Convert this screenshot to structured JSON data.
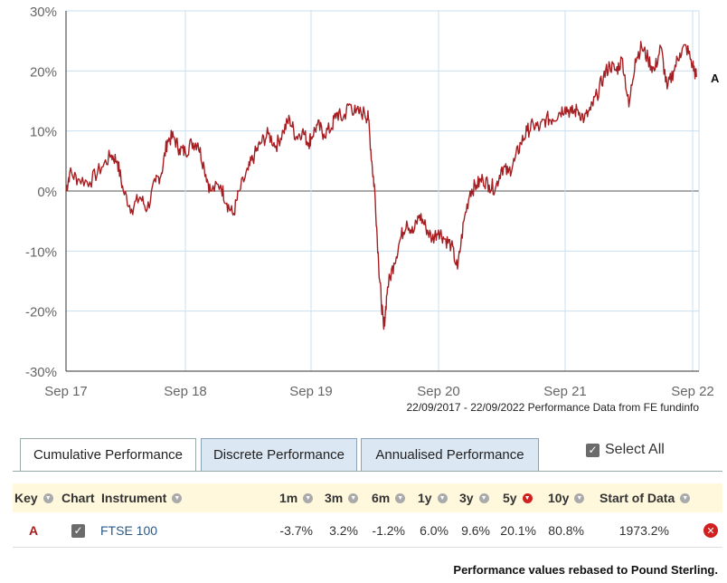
{
  "chart_data": {
    "type": "line",
    "x_tick_labels": [
      "Sep 17",
      "Sep 18",
      "Sep 19",
      "Sep 20",
      "Sep 21",
      "Sep 22"
    ],
    "y_tick_labels": [
      "30%",
      "20%",
      "10%",
      "0%",
      "-10%",
      "-20%",
      "-30%"
    ],
    "ylim": [
      -30,
      30
    ],
    "grid": true,
    "series": [
      {
        "name": "A",
        "color": "#a61e22",
        "points": [
          [
            0,
            0
          ],
          [
            0.03,
            3
          ],
          [
            0.1,
            2
          ],
          [
            0.2,
            1.5
          ],
          [
            0.3,
            4
          ],
          [
            0.38,
            6
          ],
          [
            0.43,
            5
          ],
          [
            0.48,
            0
          ],
          [
            0.55,
            -3
          ],
          [
            0.62,
            -1
          ],
          [
            0.68,
            -3
          ],
          [
            0.75,
            1.5
          ],
          [
            0.8,
            3
          ],
          [
            0.85,
            8.5
          ],
          [
            0.9,
            9
          ],
          [
            0.95,
            7
          ],
          [
            1.0,
            6.5
          ],
          [
            1.05,
            8
          ],
          [
            1.1,
            8
          ],
          [
            1.15,
            4
          ],
          [
            1.2,
            0
          ],
          [
            1.28,
            1
          ],
          [
            1.33,
            -2
          ],
          [
            1.38,
            -4
          ],
          [
            1.43,
            0
          ],
          [
            1.5,
            3.5
          ],
          [
            1.55,
            6
          ],
          [
            1.6,
            8
          ],
          [
            1.66,
            9.5
          ],
          [
            1.72,
            7.5
          ],
          [
            1.78,
            10
          ],
          [
            1.83,
            12
          ],
          [
            1.88,
            9
          ],
          [
            1.93,
            10
          ],
          [
            1.98,
            8
          ],
          [
            2.0,
            9
          ],
          [
            2.05,
            11
          ],
          [
            2.1,
            9.5
          ],
          [
            2.16,
            10.5
          ],
          [
            2.2,
            13
          ],
          [
            2.25,
            12
          ],
          [
            2.3,
            14.5
          ],
          [
            2.35,
            13
          ],
          [
            2.42,
            13
          ],
          [
            2.45,
            12
          ],
          [
            2.48,
            4
          ],
          [
            2.5,
            0
          ],
          [
            2.53,
            -12
          ],
          [
            2.55,
            -18
          ],
          [
            2.57,
            -23
          ],
          [
            2.6,
            -16
          ],
          [
            2.65,
            -12
          ],
          [
            2.7,
            -8
          ],
          [
            2.75,
            -5
          ],
          [
            2.8,
            -7
          ],
          [
            2.85,
            -4
          ],
          [
            2.9,
            -6
          ],
          [
            2.95,
            -8
          ],
          [
            3.0,
            -6.5
          ],
          [
            3.05,
            -8
          ],
          [
            3.1,
            -9
          ],
          [
            3.15,
            -13
          ],
          [
            3.2,
            -5
          ],
          [
            3.25,
            0
          ],
          [
            3.3,
            1
          ],
          [
            3.35,
            2
          ],
          [
            3.4,
            1
          ],
          [
            3.45,
            0.5
          ],
          [
            3.5,
            4
          ],
          [
            3.55,
            3
          ],
          [
            3.6,
            5
          ],
          [
            3.65,
            8
          ],
          [
            3.7,
            10
          ],
          [
            3.75,
            11
          ],
          [
            3.8,
            10.5
          ],
          [
            3.85,
            12
          ],
          [
            3.9,
            12
          ],
          [
            3.95,
            13
          ],
          [
            4.0,
            14
          ],
          [
            4.05,
            13
          ],
          [
            4.1,
            13.5
          ],
          [
            4.15,
            12
          ],
          [
            4.2,
            13.5
          ],
          [
            4.25,
            16
          ],
          [
            4.3,
            19
          ],
          [
            4.35,
            21
          ],
          [
            4.4,
            20
          ],
          [
            4.45,
            22
          ],
          [
            4.5,
            14
          ],
          [
            4.55,
            22
          ],
          [
            4.6,
            24
          ],
          [
            4.65,
            22
          ],
          [
            4.7,
            20
          ],
          [
            4.75,
            24
          ],
          [
            4.8,
            17
          ],
          [
            4.85,
            20
          ],
          [
            4.9,
            23
          ],
          [
            4.95,
            24
          ],
          [
            5.0,
            21
          ],
          [
            5.03,
            19
          ]
        ]
      }
    ],
    "end_label": "A",
    "source_note": "22/09/2017 - 22/09/2022 Performance Data from FE fundinfo"
  },
  "tabs": {
    "cumulative": "Cumulative Performance",
    "discrete": "Discrete Performance",
    "annualised": "Annualised Performance"
  },
  "select_all_label": "Select All",
  "table": {
    "headers": {
      "key": "Key",
      "chart": "Chart",
      "instrument": "Instrument",
      "m1": "1m",
      "m3": "3m",
      "m6": "6m",
      "y1": "1y",
      "y3": "3y",
      "y5": "5y",
      "y10": "10y",
      "start": "Start of Data"
    },
    "rows": [
      {
        "key": "A",
        "instrument": "FTSE 100",
        "m1": "-3.7%",
        "m3": "3.2%",
        "m6": "-1.2%",
        "y1": "6.0%",
        "y3": "9.6%",
        "y5": "20.1%",
        "y10": "80.8%",
        "start": "1973.2%"
      }
    ]
  },
  "footnote": "Performance values rebased to Pound Sterling.",
  "colors": {
    "series_line": "#a61e22",
    "tab_inactive": "#dbe7f3",
    "header_bg": "#fff8dc",
    "sort_active": "#d02020"
  }
}
